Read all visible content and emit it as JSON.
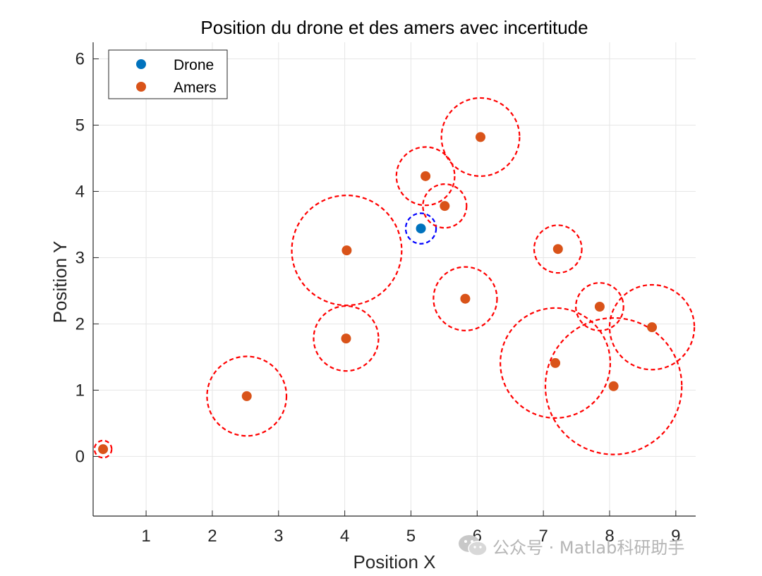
{
  "chart_data": {
    "type": "scatter",
    "title": "Position du drone et des amers avec incertitude",
    "xlabel": "Position X",
    "ylabel": "Position Y",
    "xlim": [
      0.2,
      9.3
    ],
    "ylim": [
      -0.9,
      6.25
    ],
    "xticks": [
      1,
      2,
      3,
      4,
      5,
      6,
      7,
      8,
      9
    ],
    "yticks": [
      0,
      1,
      2,
      3,
      4,
      5,
      6
    ],
    "grid": true,
    "legend": {
      "position": "top-left",
      "entries": [
        "Drone",
        "Amers"
      ]
    },
    "series": [
      {
        "name": "Drone",
        "color": "#0072BD",
        "circle_color": "#0000FF",
        "points": [
          {
            "x": 5.15,
            "y": 3.44,
            "r": 0.23
          }
        ]
      },
      {
        "name": "Amers",
        "color": "#D95319",
        "circle_color": "#FF0000",
        "points": [
          {
            "x": 0.35,
            "y": 0.11,
            "r": 0.13
          },
          {
            "x": 2.52,
            "y": 0.91,
            "r": 0.6
          },
          {
            "x": 4.03,
            "y": 3.11,
            "r": 0.83
          },
          {
            "x": 4.02,
            "y": 1.78,
            "r": 0.49
          },
          {
            "x": 5.22,
            "y": 4.23,
            "r": 0.44
          },
          {
            "x": 5.51,
            "y": 3.78,
            "r": 0.33
          },
          {
            "x": 6.05,
            "y": 4.82,
            "r": 0.59
          },
          {
            "x": 5.82,
            "y": 2.38,
            "r": 0.48
          },
          {
            "x": 7.22,
            "y": 3.13,
            "r": 0.36
          },
          {
            "x": 7.85,
            "y": 2.26,
            "r": 0.36
          },
          {
            "x": 8.64,
            "y": 1.95,
            "r": 0.64
          },
          {
            "x": 7.18,
            "y": 1.41,
            "r": 0.83
          },
          {
            "x": 8.06,
            "y": 1.06,
            "r": 1.03
          }
        ]
      }
    ]
  },
  "watermark": {
    "icon": "wechat-icon",
    "text": "公众号 · Matlab科研助手"
  }
}
